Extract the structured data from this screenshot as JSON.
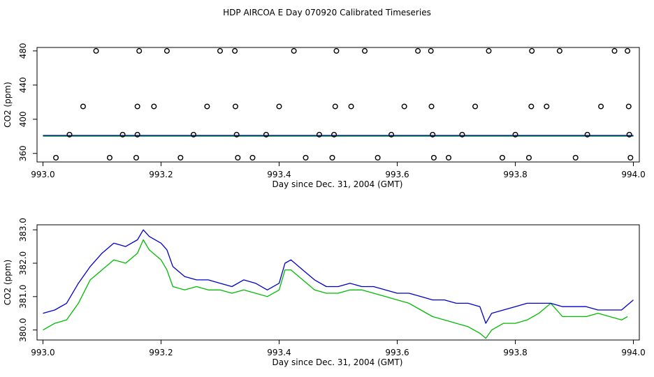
{
  "title": "HDP AIRCOA E  Day 070920  Calibrated Timeseries",
  "chart_data": [
    {
      "type": "scatter",
      "xlabel": "Day since Dec. 31, 2004 (GMT)",
      "ylabel": "CO2 (ppm)",
      "xlim": [
        992.99,
        994.01
      ],
      "ylim": [
        350,
        484
      ],
      "xticks": [
        "993.0",
        "993.2",
        "993.4",
        "993.6",
        "993.8",
        "994.0"
      ],
      "yticks": [
        "360",
        "400",
        "440",
        "480"
      ],
      "colors": {
        "points": "#000000",
        "line_a": "#0000cc",
        "line_b": "#00bb00"
      },
      "series": [
        {
          "marker": "open-circle",
          "x": [
            993.045,
            993.09,
            993.135,
            993.16,
            993.163,
            993.21,
            993.255,
            993.3,
            993.325,
            993.328,
            993.378,
            993.425,
            993.468,
            993.493,
            993.497,
            993.545,
            993.59,
            993.635,
            993.657,
            993.66,
            993.71,
            993.755,
            993.8,
            993.828,
            993.875,
            993.922,
            993.968,
            993.99,
            993.993,
            993.068,
            993.16,
            993.188,
            993.278,
            993.326,
            993.4,
            993.495,
            993.522,
            993.612,
            993.658,
            993.732,
            993.827,
            993.853,
            993.945,
            993.992,
            993.022,
            993.113,
            993.158,
            993.233,
            993.33,
            993.355,
            993.445,
            993.49,
            993.567,
            993.662,
            993.687,
            993.778,
            993.823,
            993.902,
            993.995
          ],
          "y": [
            382,
            480,
            382,
            382,
            480,
            480,
            382,
            480,
            480,
            382,
            382,
            480,
            382,
            382,
            480,
            480,
            382,
            480,
            480,
            382,
            382,
            480,
            382,
            480,
            480,
            382,
            480,
            480,
            382,
            415,
            415,
            415,
            415,
            415,
            415,
            415,
            415,
            415,
            415,
            415,
            415,
            415,
            415,
            415,
            355,
            355,
            355,
            355,
            355,
            355,
            355,
            355,
            355,
            355,
            355,
            355,
            355,
            355,
            355
          ]
        },
        {
          "marker": "line",
          "x": [
            993.0,
            994.0
          ],
          "y": [
            381,
            381
          ]
        }
      ]
    },
    {
      "type": "line",
      "xlabel": "Day since Dec. 31, 2004 (GMT)",
      "ylabel": "CO2 (ppm)",
      "xlim": [
        992.99,
        994.01
      ],
      "ylim": [
        379.7,
        383.15
      ],
      "xticks": [
        "993.0",
        "993.2",
        "993.4",
        "993.6",
        "993.8",
        "994.0"
      ],
      "yticks": [
        "380.0",
        "381.0",
        "382.0",
        "383.0"
      ],
      "series": [
        {
          "color": "#0000cc",
          "x": [
            993.0,
            993.02,
            993.04,
            993.06,
            993.08,
            993.1,
            993.12,
            993.14,
            993.16,
            993.17,
            993.18,
            993.2,
            993.21,
            993.22,
            993.24,
            993.26,
            993.28,
            993.3,
            993.32,
            993.34,
            993.36,
            993.38,
            993.4,
            993.41,
            993.42,
            993.44,
            993.46,
            993.48,
            993.5,
            993.52,
            993.54,
            993.56,
            993.58,
            993.6,
            993.62,
            993.64,
            993.66,
            993.68,
            993.7,
            993.72,
            993.74,
            993.75,
            993.76,
            993.78,
            993.8,
            993.82,
            993.84,
            993.86,
            993.88,
            993.9,
            993.92,
            993.94,
            993.96,
            993.98,
            994.0
          ],
          "y": [
            380.5,
            380.6,
            380.8,
            381.4,
            381.9,
            382.3,
            382.6,
            382.5,
            382.7,
            383.0,
            382.8,
            382.6,
            382.4,
            381.9,
            381.6,
            381.5,
            381.5,
            381.4,
            381.3,
            381.5,
            381.4,
            381.2,
            381.4,
            382.0,
            382.1,
            381.8,
            381.5,
            381.3,
            381.3,
            381.4,
            381.3,
            381.3,
            381.2,
            381.1,
            381.1,
            381.0,
            380.9,
            380.9,
            380.8,
            380.8,
            380.7,
            380.2,
            380.5,
            380.6,
            380.7,
            380.8,
            380.8,
            380.8,
            380.7,
            380.7,
            380.7,
            380.6,
            380.6,
            380.6,
            380.9
          ]
        },
        {
          "color": "#00bb00",
          "x": [
            993.0,
            993.02,
            993.04,
            993.06,
            993.08,
            993.1,
            993.12,
            993.14,
            993.16,
            993.17,
            993.18,
            993.2,
            993.21,
            993.22,
            993.24,
            993.26,
            993.28,
            993.3,
            993.32,
            993.34,
            993.36,
            993.38,
            993.4,
            993.41,
            993.42,
            993.44,
            993.46,
            993.48,
            993.5,
            993.52,
            993.54,
            993.56,
            993.58,
            993.6,
            993.62,
            993.64,
            993.66,
            993.68,
            993.7,
            993.72,
            993.74,
            993.75,
            993.76,
            993.78,
            993.8,
            993.82,
            993.84,
            993.86,
            993.88,
            993.9,
            993.92,
            993.94,
            993.96,
            993.98,
            993.99
          ],
          "y": [
            380.0,
            380.2,
            380.3,
            380.8,
            381.5,
            381.8,
            382.1,
            382.0,
            382.3,
            382.7,
            382.4,
            382.1,
            381.8,
            381.3,
            381.2,
            381.3,
            381.2,
            381.2,
            381.1,
            381.2,
            381.1,
            381.0,
            381.2,
            381.8,
            381.8,
            381.5,
            381.2,
            381.1,
            381.1,
            381.2,
            381.2,
            381.1,
            381.0,
            380.9,
            380.8,
            380.6,
            380.4,
            380.3,
            380.2,
            380.1,
            379.9,
            379.75,
            380.0,
            380.2,
            380.2,
            380.3,
            380.5,
            380.8,
            380.4,
            380.4,
            380.4,
            380.5,
            380.4,
            380.3,
            380.4
          ]
        }
      ]
    }
  ]
}
